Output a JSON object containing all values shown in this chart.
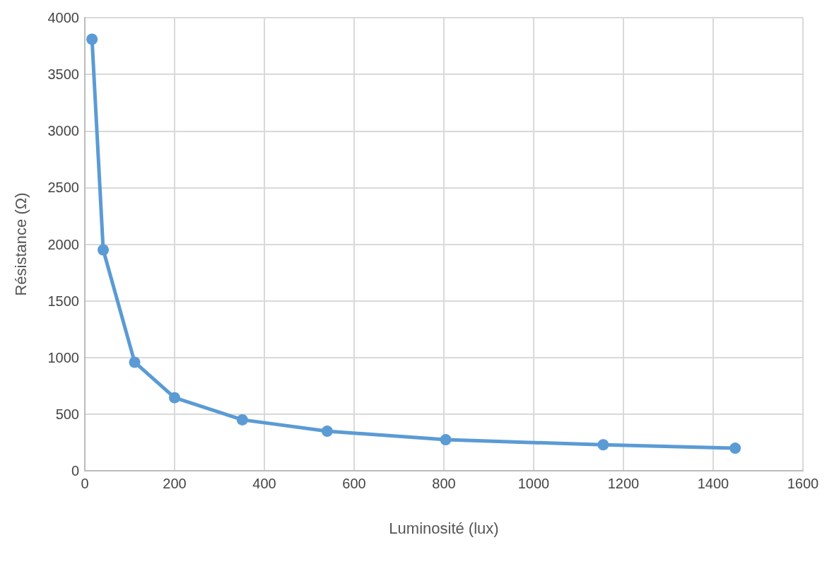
{
  "chart_data": {
    "type": "line",
    "xlabel": "Luminosité (lux)",
    "ylabel": "Résistance (Ω)",
    "series": [
      {
        "color": "#5b9bd5",
        "x": [
          16,
          41,
          111,
          200,
          351,
          540,
          804,
          1155,
          1449
        ],
        "values": [
          3810,
          1950,
          958,
          645,
          450,
          349,
          274,
          229,
          199
        ]
      }
    ],
    "xlim": [
      0,
      1600
    ],
    "xticks": [
      0,
      200,
      400,
      600,
      800,
      1000,
      1200,
      1400,
      1600
    ],
    "ylim": [
      0,
      4000
    ],
    "yticks": [
      0,
      500,
      1000,
      1500,
      2000,
      2500,
      3000,
      3500,
      4000
    ],
    "grid": true,
    "marker": "circle",
    "line_style": "solid"
  }
}
